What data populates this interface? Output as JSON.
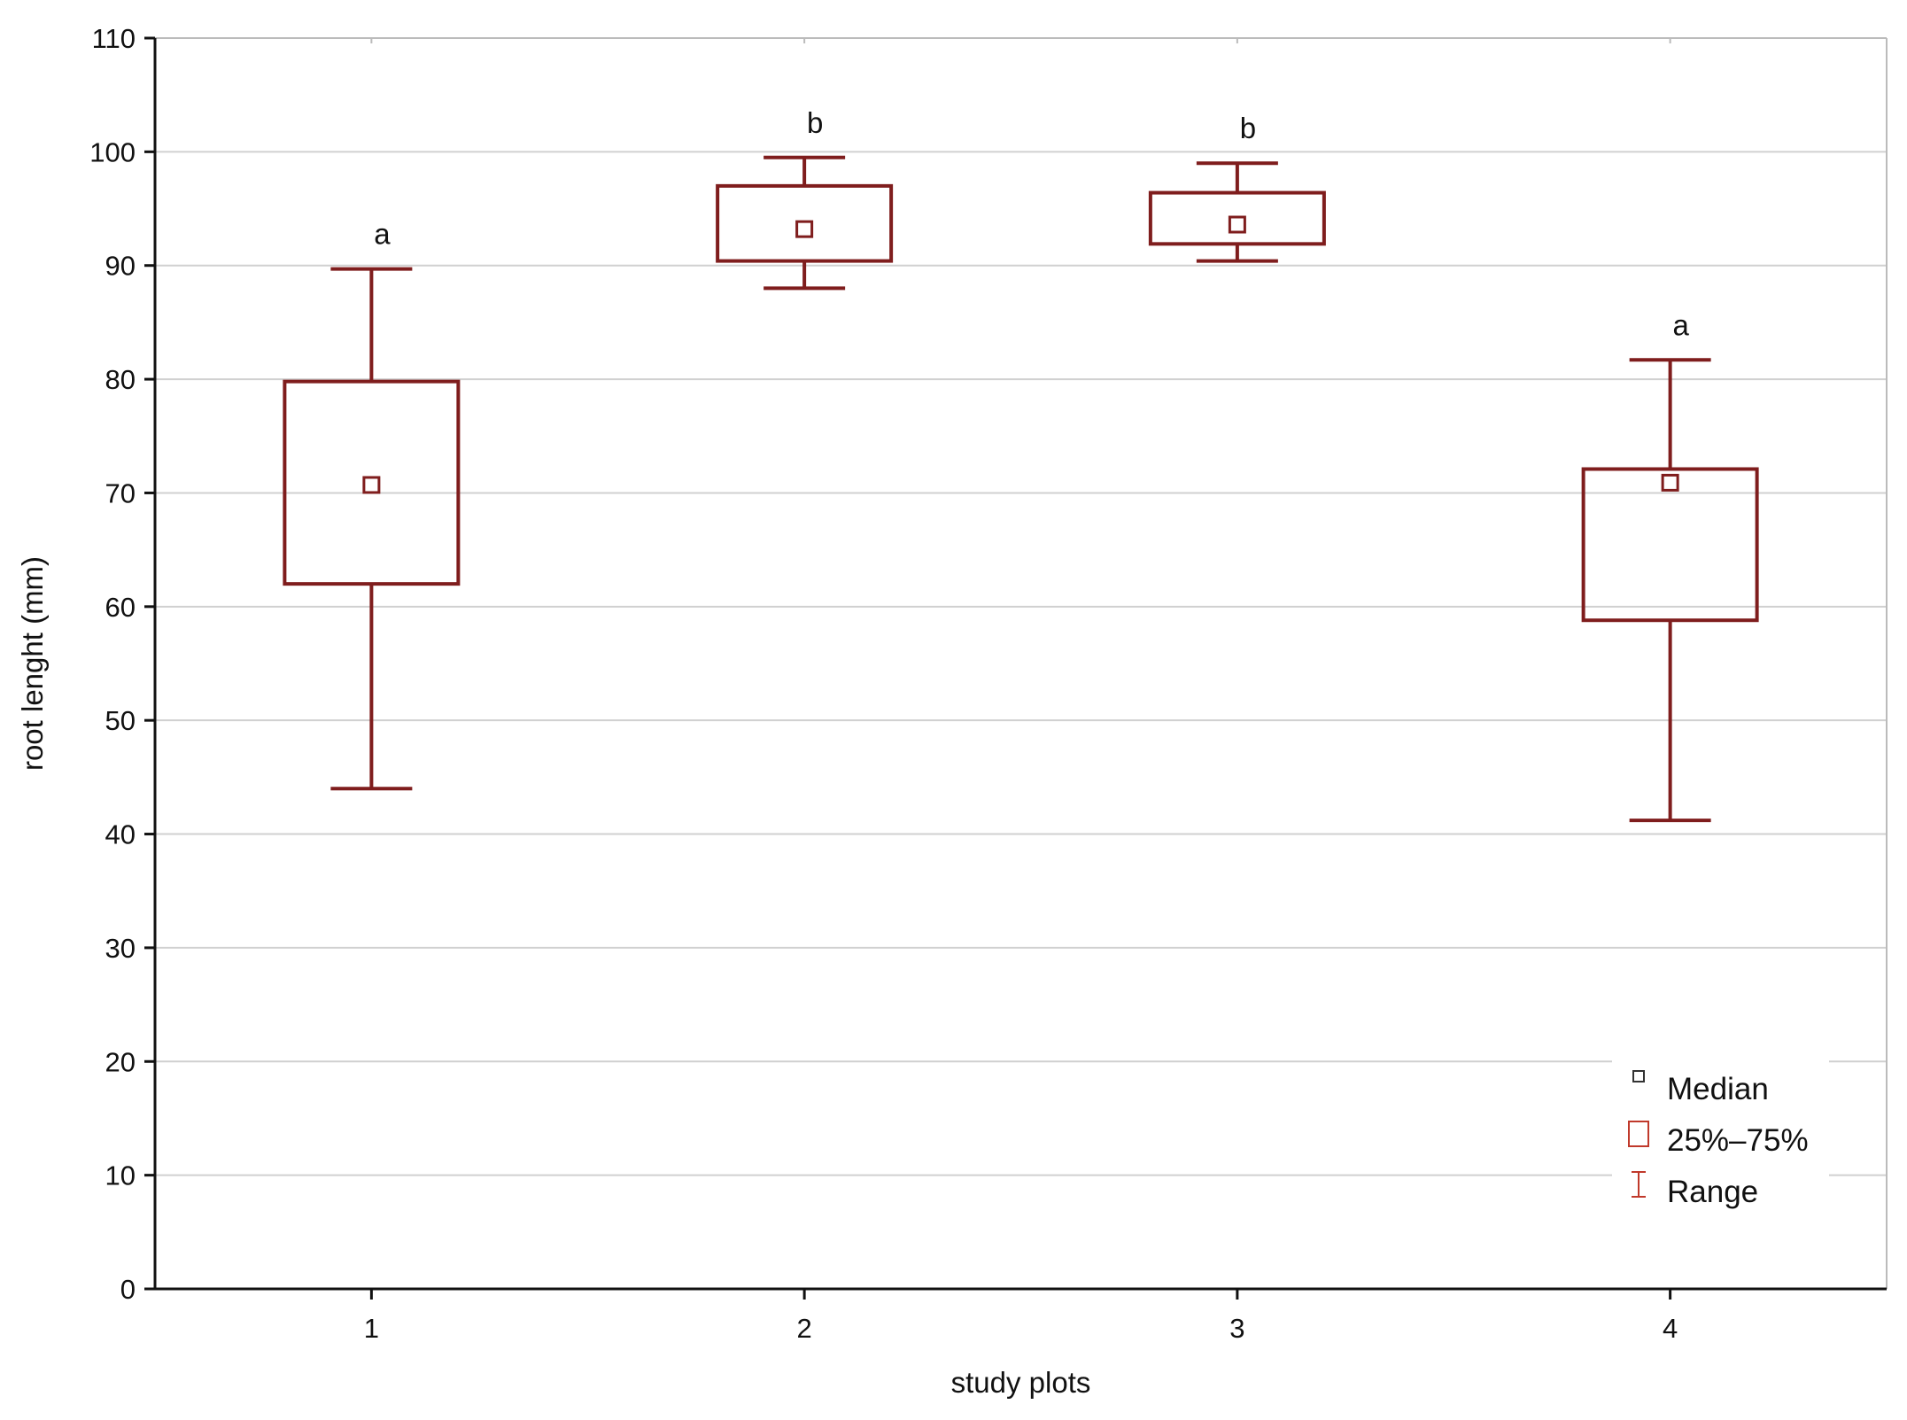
{
  "chart_data": {
    "type": "box",
    "xlabel": "study plots",
    "ylabel": "root lenght (mm)",
    "ylim": [
      0,
      110
    ],
    "yticks": [
      0,
      10,
      20,
      30,
      40,
      50,
      60,
      70,
      80,
      90,
      100,
      110
    ],
    "grid": true,
    "categories": [
      "1",
      "2",
      "3",
      "4"
    ],
    "boxes": [
      {
        "category": "1",
        "min": 44,
        "q1": 62,
        "median": 70.7,
        "q3": 79.8,
        "max": 89.7,
        "letter": "a"
      },
      {
        "category": "2",
        "min": 88,
        "q1": 90.4,
        "median": 93.2,
        "q3": 97,
        "max": 99.5,
        "letter": "b"
      },
      {
        "category": "3",
        "min": 90.4,
        "q1": 91.9,
        "median": 93.6,
        "q3": 96.4,
        "max": 99,
        "letter": "b"
      },
      {
        "category": "4",
        "min": 41.2,
        "q1": 58.8,
        "median": 70.9,
        "q3": 72.1,
        "max": 81.7,
        "letter": "a"
      }
    ],
    "legend": {
      "placement": "bottom-right",
      "entries": [
        {
          "label": "Median",
          "symbol": "small-square"
        },
        {
          "label": "25%–75%",
          "symbol": "box"
        },
        {
          "label": "Range",
          "symbol": "whisker"
        }
      ]
    },
    "colors": {
      "box": "#7f1d1d",
      "legend_median": "#333333",
      "legend_box": "#c0392b",
      "legend_range": "#c0392b",
      "grid": "#d0d0d0",
      "axis": "#111111"
    }
  }
}
